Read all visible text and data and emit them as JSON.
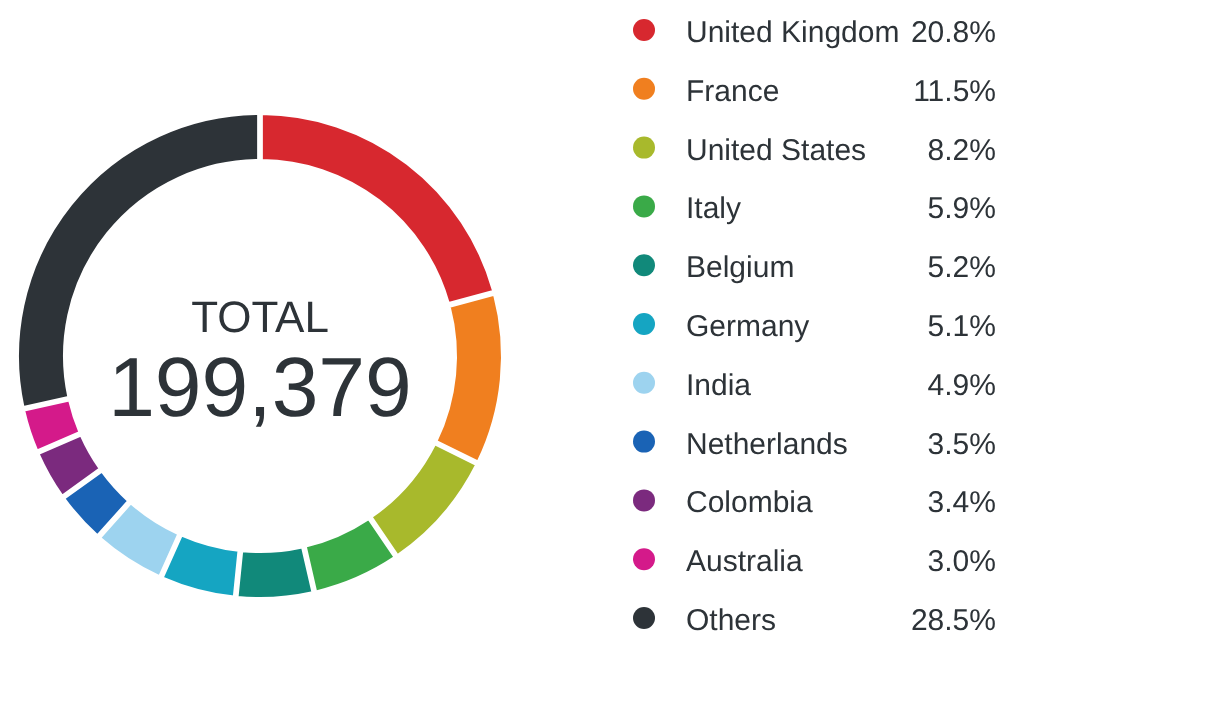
{
  "chart_data": {
    "type": "donut",
    "categories": [
      "United Kingdom",
      "France",
      "United States",
      "Italy",
      "Belgium",
      "Germany",
      "India",
      "Netherlands",
      "Colombia",
      "Australia",
      "Others"
    ],
    "values": [
      20.8,
      11.5,
      8.2,
      5.9,
      5.2,
      5.1,
      4.9,
      3.5,
      3.4,
      3.0,
      28.5
    ],
    "value_labels": [
      "20.8%",
      "11.5%",
      "8.2%",
      "5.9%",
      "5.2%",
      "5.1%",
      "4.9%",
      "3.5%",
      "3.4%",
      "3.0%",
      "28.5%"
    ],
    "colors": [
      "#d7282f",
      "#f07f1f",
      "#a8b92c",
      "#3aaa48",
      "#11897a",
      "#15a5c2",
      "#9dd3ef",
      "#1a63b5",
      "#7b2a7e",
      "#d41a8a",
      "#2d3338"
    ],
    "annotations": [
      "TOTAL",
      "199,379"
    ],
    "legend": "right"
  }
}
